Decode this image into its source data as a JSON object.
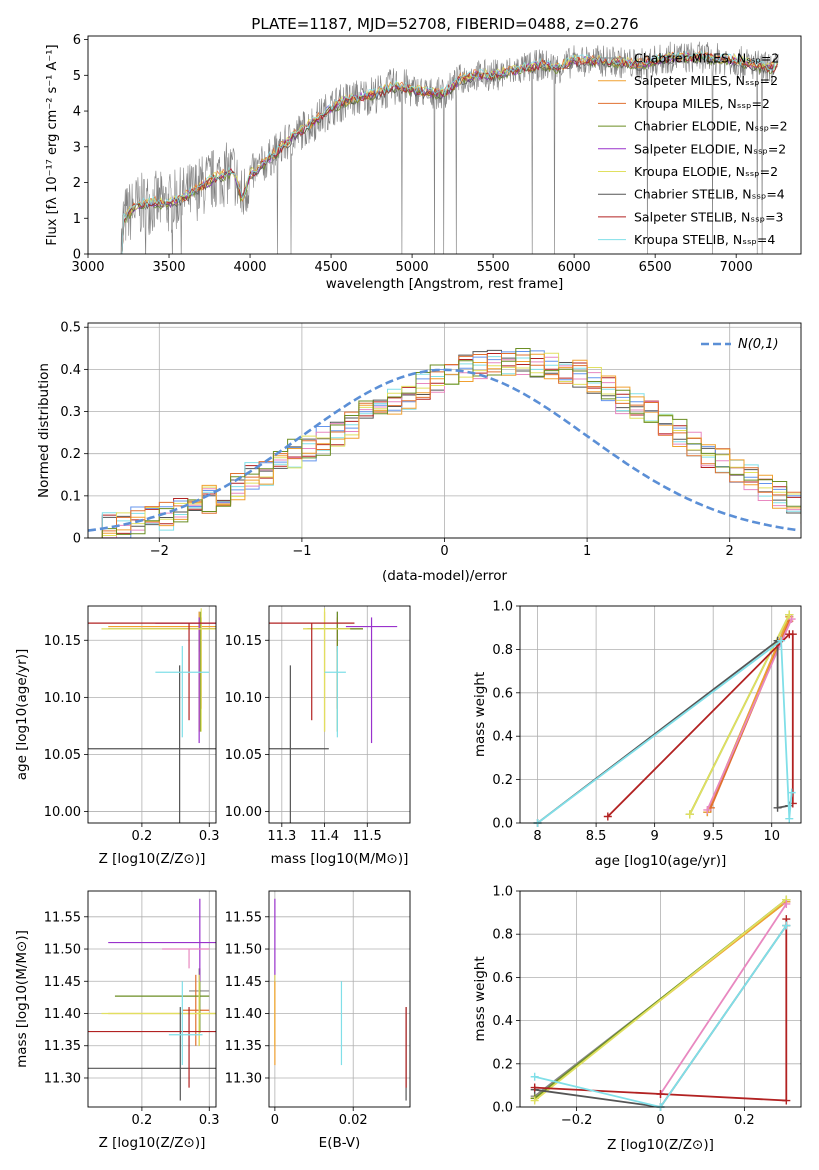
{
  "figure": {
    "title": "PLATE=1187, MJD=52708, FIBERID=0488, z=0.276"
  },
  "colors": {
    "Chabrier MILES": "#888888",
    "Salpeter MILES": "#f0a030",
    "Kroupa MILES": "#e07030",
    "Chabrier ELODIE": "#6b8e23",
    "Salpeter ELODIE": "#9932cc",
    "Kroupa ELODIE": "#e0e060",
    "Chabrier STELIB": "#555555",
    "Salpeter STELIB": "#b22222",
    "Kroupa STELIB": "#80dfe8",
    "Chabrier MILES hist": "#6495ed",
    "Kroupa MILES hist": "#e888c0",
    "normal": "#5b8fd6"
  },
  "chart_data": [
    {
      "id": "spectrum",
      "type": "line",
      "title": "PLATE=1187, MJD=52708, FIBERID=0488, z=0.276",
      "xlabel": "wavelength [Angstrom, rest frame]",
      "ylabel": "Flux [f_λ 10^-17 erg cm^-2 s^-1 A^-1]",
      "xlim": [
        3000,
        7400
      ],
      "ylim": [
        0,
        6.1
      ],
      "xticks": [
        3000,
        3500,
        4000,
        4500,
        5000,
        5500,
        6000,
        6500,
        7000
      ],
      "yticks": [
        0,
        1,
        2,
        3,
        4,
        5,
        6
      ],
      "grid": false,
      "legend_position": "top-right",
      "data_envelope": {
        "x": [
          3200,
          3220,
          3300,
          3400,
          3500,
          3600,
          3700,
          3800,
          3900,
          3950,
          4000,
          4100,
          4200,
          4300,
          4400,
          4500,
          4600,
          4700,
          4800,
          4900,
          5000,
          5100,
          5200,
          5300,
          5400,
          5500,
          5600,
          5700,
          5800,
          5900,
          6000,
          6200,
          6400,
          6600,
          6800,
          7000,
          7200
        ],
        "y": [
          0.0,
          1.0,
          1.35,
          1.45,
          1.4,
          1.6,
          1.9,
          2.15,
          2.3,
          1.5,
          2.2,
          2.6,
          3.0,
          3.4,
          3.7,
          4.1,
          4.3,
          4.4,
          4.5,
          4.7,
          4.6,
          4.5,
          4.5,
          4.9,
          5.0,
          5.0,
          5.1,
          5.2,
          5.3,
          5.2,
          5.4,
          5.4,
          5.3,
          5.5,
          5.5,
          5.4,
          5.2
        ]
      },
      "series": [
        {
          "name": "Chabrier MILES, N_SSP=2",
          "color": "#888888"
        },
        {
          "name": "Salpeter MILES, N_SSP=2",
          "color": "#f0a030"
        },
        {
          "name": "Kroupa MILES, N_SSP=2",
          "color": "#e07030"
        },
        {
          "name": "Chabrier ELODIE, N_SSP=2",
          "color": "#6b8e23"
        },
        {
          "name": "Salpeter ELODIE, N_SSP=2",
          "color": "#9932cc"
        },
        {
          "name": "Kroupa ELODIE, N_SSP=2",
          "color": "#e0e060"
        },
        {
          "name": "Chabrier STELIB, N_SSP=4",
          "color": "#555555"
        },
        {
          "name": "Salpeter STELIB, N_SSP=3",
          "color": "#b22222"
        },
        {
          "name": "Kroupa STELIB, N_SSP=4",
          "color": "#80dfe8"
        }
      ]
    },
    {
      "id": "residuals",
      "type": "histogram",
      "xlabel": "(data-model)/error",
      "ylabel": "Normed distribution",
      "xlim": [
        -2.5,
        2.5
      ],
      "ylim": [
        0,
        0.51
      ],
      "xticks": [
        -2,
        -1,
        0,
        1,
        2
      ],
      "yticks": [
        0.0,
        0.1,
        0.2,
        0.3,
        0.4,
        0.5
      ],
      "grid": true,
      "legend_position": "top-right",
      "legend": "N(0,1)",
      "bin_width": 0.1,
      "bin_start": -2.5,
      "approx_heights": [
        0.02,
        0.03,
        0.03,
        0.04,
        0.04,
        0.05,
        0.06,
        0.07,
        0.09,
        0.1,
        0.12,
        0.15,
        0.16,
        0.18,
        0.2,
        0.21,
        0.23,
        0.25,
        0.27,
        0.29,
        0.31,
        0.32,
        0.34,
        0.36,
        0.38,
        0.39,
        0.4,
        0.41,
        0.41,
        0.42,
        0.42,
        0.41,
        0.41,
        0.4,
        0.39,
        0.37,
        0.35,
        0.33,
        0.31,
        0.29,
        0.27,
        0.25,
        0.22,
        0.2,
        0.18,
        0.16,
        0.14,
        0.12,
        0.1,
        0.08,
        0.07
      ]
    },
    {
      "id": "age_vs_Z",
      "type": "errorbar",
      "xlabel": "Z [log10(Z/Z⊙)]",
      "ylabel": "age [log10(age/yr)]",
      "xlim": [
        0.12,
        0.31
      ],
      "ylim": [
        9.99,
        10.18
      ],
      "xticks": [
        0.2,
        0.3
      ],
      "yticks": [
        10.0,
        10.05,
        10.1,
        10.15
      ],
      "grid": true,
      "points": [
        {
          "x": 0.285,
          "y": 10.16,
          "xerr": [
            0.26,
            0.31
          ],
          "yerr": [
            10.14,
            10.175
          ],
          "color": "#888888"
        },
        {
          "x": 0.285,
          "y": 10.162,
          "xerr": [
            0.15,
            0.31
          ],
          "yerr": [
            10.07,
            10.175
          ],
          "color": "#f0a030"
        },
        {
          "x": 0.288,
          "y": 10.16,
          "xerr": [
            0.2,
            0.31
          ],
          "yerr": [
            10.09,
            10.17
          ],
          "color": "#e07030"
        },
        {
          "x": 0.287,
          "y": 10.16,
          "xerr": [
            0.15,
            0.31
          ],
          "yerr": [
            10.07,
            10.175
          ],
          "color": "#6b8e23"
        },
        {
          "x": 0.285,
          "y": 10.165,
          "xerr": [
            0.22,
            0.31
          ],
          "yerr": [
            10.06,
            10.17
          ],
          "color": "#9932cc"
        },
        {
          "x": 0.288,
          "y": 10.16,
          "xerr": [
            0.14,
            0.31
          ],
          "yerr": [
            10.07,
            10.178
          ],
          "color": "#e0e060"
        },
        {
          "x": 0.256,
          "y": 10.055,
          "xerr": [
            0.12,
            0.31
          ],
          "yerr": [
            9.99,
            10.128
          ],
          "color": "#555555"
        },
        {
          "x": 0.27,
          "y": 10.165,
          "xerr": [
            0.12,
            0.31
          ],
          "yerr": [
            10.08,
            10.165
          ],
          "color": "#b22222"
        },
        {
          "x": 0.26,
          "y": 10.122,
          "xerr": [
            0.22,
            0.3
          ],
          "yerr": [
            10.065,
            10.145
          ],
          "color": "#80dfe8"
        }
      ]
    },
    {
      "id": "age_vs_mass",
      "type": "errorbar",
      "xlabel": "mass [log10(M/M⊙)]",
      "ylabel": "",
      "xlim": [
        11.27,
        11.6
      ],
      "ylim": [
        9.99,
        10.18
      ],
      "xticks": [
        11.3,
        11.4,
        11.5
      ],
      "yticks": [
        10.0,
        10.05,
        10.1,
        10.15
      ],
      "grid": true,
      "points": [
        {
          "x": 11.43,
          "y": 10.16,
          "xerr": [
            11.39,
            11.46
          ],
          "yerr": [
            10.14,
            10.175
          ],
          "color": "#888888"
        },
        {
          "x": 11.4,
          "y": 10.16,
          "xerr": [
            11.35,
            11.46
          ],
          "yerr": [
            10.07,
            10.175
          ],
          "color": "#f0a030"
        },
        {
          "x": 11.43,
          "y": 10.16,
          "xerr": [
            11.38,
            11.49
          ],
          "yerr": [
            10.09,
            10.17
          ],
          "color": "#e07030"
        },
        {
          "x": 11.43,
          "y": 10.16,
          "xerr": [
            11.36,
            11.49
          ],
          "yerr": [
            10.07,
            10.175
          ],
          "color": "#6b8e23"
        },
        {
          "x": 11.51,
          "y": 10.162,
          "xerr": [
            11.45,
            11.57
          ],
          "yerr": [
            10.06,
            10.17
          ],
          "color": "#9932cc"
        },
        {
          "x": 11.4,
          "y": 10.16,
          "xerr": [
            11.35,
            11.46
          ],
          "yerr": [
            10.07,
            10.178
          ],
          "color": "#e0e060"
        },
        {
          "x": 11.32,
          "y": 10.055,
          "xerr": [
            11.27,
            11.41
          ],
          "yerr": [
            9.99,
            10.128
          ],
          "color": "#555555"
        },
        {
          "x": 11.37,
          "y": 10.165,
          "xerr": [
            11.27,
            11.47
          ],
          "yerr": [
            10.08,
            10.165
          ],
          "color": "#b22222"
        },
        {
          "x": 11.43,
          "y": 10.122,
          "xerr": [
            11.4,
            11.45
          ],
          "yerr": [
            10.065,
            10.145
          ],
          "color": "#80dfe8"
        }
      ]
    },
    {
      "id": "weight_vs_age",
      "type": "line",
      "xlabel": "age [log10(age/yr)]",
      "ylabel": "mass weight",
      "xlim": [
        7.85,
        10.25
      ],
      "ylim": [
        0,
        1.0
      ],
      "xticks": [
        8.0,
        8.5,
        9.0,
        9.5,
        10.0
      ],
      "yticks": [
        0.0,
        0.2,
        0.4,
        0.6,
        0.8,
        1.0
      ],
      "grid": true,
      "series": [
        {
          "color": "#888888",
          "x": [
            9.45,
            10.15
          ],
          "y": [
            0.05,
            0.95
          ]
        },
        {
          "color": "#f0a030",
          "x": [
            9.45,
            10.15
          ],
          "y": [
            0.05,
            0.95
          ]
        },
        {
          "color": "#e07030",
          "x": [
            9.48,
            10.15
          ],
          "y": [
            0.07,
            0.93
          ]
        },
        {
          "color": "#6b8e23",
          "x": [
            9.3,
            10.15
          ],
          "y": [
            0.04,
            0.96
          ]
        },
        {
          "color": "#e888c0",
          "x": [
            9.45,
            10.17
          ],
          "y": [
            0.06,
            0.94
          ]
        },
        {
          "color": "#e0e060",
          "x": [
            9.3,
            10.15
          ],
          "y": [
            0.04,
            0.96
          ]
        },
        {
          "color": "#555555",
          "x": [
            8.0,
            10.05,
            10.05,
            10.15
          ],
          "y": [
            0.0,
            0.84,
            0.07,
            0.08
          ]
        },
        {
          "color": "#b22222",
          "x": [
            8.6,
            10.15,
            10.18,
            10.18
          ],
          "y": [
            0.03,
            0.87,
            0.87,
            0.09
          ]
        },
        {
          "color": "#80dfe8",
          "x": [
            8.0,
            10.08,
            10.15,
            10.17
          ],
          "y": [
            0.0,
            0.84,
            0.02,
            0.14
          ]
        }
      ]
    },
    {
      "id": "mass_vs_Z",
      "type": "errorbar",
      "xlabel": "Z [log10(Z/Z⊙)]",
      "ylabel": "mass [log10(M/M⊙)]",
      "xlim": [
        0.12,
        0.31
      ],
      "ylim": [
        11.255,
        11.59
      ],
      "xticks": [
        0.2,
        0.3
      ],
      "yticks": [
        11.3,
        11.35,
        11.4,
        11.45,
        11.5,
        11.55
      ],
      "grid": true,
      "points": [
        {
          "x": 0.285,
          "y": 11.435,
          "xerr": [
            0.27,
            0.3
          ],
          "yerr": [
            11.38,
            11.47
          ],
          "color": "#888888"
        },
        {
          "x": 0.285,
          "y": 11.4,
          "xerr": [
            0.15,
            0.31
          ],
          "yerr": [
            11.35,
            11.46
          ],
          "color": "#f0a030"
        },
        {
          "x": 0.28,
          "y": 11.405,
          "xerr": [
            0.26,
            0.3
          ],
          "yerr": [
            11.35,
            11.46
          ],
          "color": "#e07030"
        },
        {
          "x": 0.286,
          "y": 11.427,
          "xerr": [
            0.16,
            0.3
          ],
          "yerr": [
            11.37,
            11.47
          ],
          "color": "#6b8e23"
        },
        {
          "x": 0.286,
          "y": 11.51,
          "xerr": [
            0.15,
            0.31
          ],
          "yerr": [
            11.45,
            11.578
          ],
          "color": "#9932cc"
        },
        {
          "x": 0.285,
          "y": 11.4,
          "xerr": [
            0.14,
            0.31
          ],
          "yerr": [
            11.35,
            11.46
          ],
          "color": "#e0e060"
        },
        {
          "x": 0.257,
          "y": 11.315,
          "xerr": [
            0.12,
            0.31
          ],
          "yerr": [
            11.265,
            11.41
          ],
          "color": "#555555"
        },
        {
          "x": 0.27,
          "y": 11.372,
          "xerr": [
            0.12,
            0.31
          ],
          "yerr": [
            11.285,
            11.41
          ],
          "color": "#b22222"
        },
        {
          "x": 0.26,
          "y": 11.367,
          "xerr": [
            0.24,
            0.29
          ],
          "yerr": [
            11.32,
            11.45
          ],
          "color": "#80dfe8"
        },
        {
          "x": 0.27,
          "y": 11.5,
          "xerr": [
            0.23,
            0.3
          ],
          "yerr": [
            11.47,
            11.5
          ],
          "color": "#e888c0"
        }
      ]
    },
    {
      "id": "mass_vs_EBV",
      "type": "errorbar",
      "xlabel": "E(B-V)",
      "ylabel": "",
      "xlim": [
        -0.0015,
        0.0345
      ],
      "ylim": [
        11.255,
        11.59
      ],
      "xticks": [
        0.0,
        0.02
      ],
      "yticks": [
        11.3,
        11.35,
        11.4,
        11.45,
        11.5,
        11.55
      ],
      "grid": true,
      "points": [
        {
          "x": 0.0,
          "y": 11.5,
          "yerr": [
            11.45,
            11.578
          ],
          "color": "#9932cc"
        },
        {
          "x": 0.0,
          "y": 11.4,
          "yerr": [
            11.35,
            11.46
          ],
          "color": "#e0e060"
        },
        {
          "x": 0.0,
          "y": 11.36,
          "yerr": [
            11.32,
            11.45
          ],
          "color": "#f0a030"
        },
        {
          "x": 0.017,
          "y": 11.38,
          "yerr": [
            11.32,
            11.45
          ],
          "color": "#80dfe8"
        },
        {
          "x": 0.0335,
          "y": 11.34,
          "yerr": [
            11.265,
            11.41
          ],
          "color": "#555555"
        },
        {
          "x": 0.0335,
          "y": 11.35,
          "yerr": [
            11.285,
            11.41
          ],
          "color": "#b22222"
        }
      ]
    },
    {
      "id": "weight_vs_Z",
      "type": "line",
      "xlabel": "Z [log10(Z/Z⊙)]",
      "ylabel": "mass weight",
      "xlim": [
        -0.335,
        0.335
      ],
      "ylim": [
        0,
        1.0
      ],
      "xticks": [
        -0.2,
        0.0,
        0.2
      ],
      "yticks": [
        0.0,
        0.2,
        0.4,
        0.6,
        0.8,
        1.0
      ],
      "grid": true,
      "series": [
        {
          "color": "#888888",
          "x": [
            -0.3,
            0.3
          ],
          "y": [
            0.05,
            0.95
          ]
        },
        {
          "color": "#f0a030",
          "x": [
            -0.3,
            0.3
          ],
          "y": [
            0.04,
            0.95
          ]
        },
        {
          "color": "#6b8e23",
          "x": [
            -0.3,
            0.3
          ],
          "y": [
            0.04,
            0.96
          ]
        },
        {
          "color": "#e0e060",
          "x": [
            -0.3,
            0.3
          ],
          "y": [
            0.03,
            0.96
          ]
        },
        {
          "color": "#e888c0",
          "x": [
            0.0,
            0.3
          ],
          "y": [
            0.06,
            0.94
          ]
        },
        {
          "color": "#555555",
          "x": [
            -0.3,
            0.0,
            0.3
          ],
          "y": [
            0.08,
            0.0,
            0.84
          ]
        },
        {
          "color": "#b22222",
          "x": [
            -0.3,
            0.0,
            0.3,
            0.3
          ],
          "y": [
            0.09,
            0.06,
            0.03,
            0.87
          ]
        },
        {
          "color": "#80dfe8",
          "x": [
            -0.3,
            0.0,
            0.3
          ],
          "y": [
            0.14,
            0.0,
            0.84
          ]
        }
      ]
    }
  ]
}
